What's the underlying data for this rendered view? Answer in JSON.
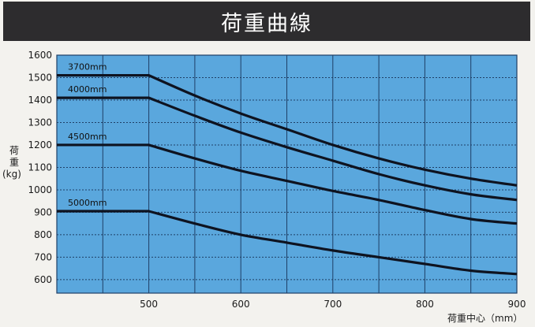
{
  "header": {
    "title": "荷重曲線"
  },
  "colors": {
    "plot_bg": "#5aa7dd",
    "grid": "#1f3f66",
    "line": "#0e1320",
    "title_bg": "#2d2c2e"
  },
  "chart_data": {
    "type": "line",
    "title": "荷重曲線",
    "xlabel": "荷重中心（mm）",
    "ylabel_chars": [
      "荷",
      "重"
    ],
    "ylabel_unit": "(kg)",
    "xlim": [
      400,
      900
    ],
    "ylim": [
      540,
      1600
    ],
    "x_ticks": [
      500,
      600,
      700,
      800,
      900
    ],
    "y_ticks": [
      600,
      700,
      800,
      900,
      1000,
      1100,
      1200,
      1300,
      1400,
      1500,
      1600
    ],
    "grid": true,
    "series": [
      {
        "name": "3700mm",
        "x": [
          400,
          500,
          550,
          600,
          650,
          700,
          750,
          800,
          850,
          900
        ],
        "y": [
          1510,
          1510,
          1420,
          1340,
          1270,
          1200,
          1140,
          1090,
          1050,
          1020
        ]
      },
      {
        "name": "4000mm",
        "x": [
          400,
          500,
          550,
          600,
          650,
          700,
          750,
          800,
          850,
          900
        ],
        "y": [
          1410,
          1410,
          1330,
          1255,
          1190,
          1130,
          1070,
          1020,
          980,
          955
        ]
      },
      {
        "name": "4500mm",
        "x": [
          400,
          500,
          550,
          600,
          650,
          700,
          750,
          800,
          850,
          900
        ],
        "y": [
          1200,
          1200,
          1140,
          1085,
          1040,
          995,
          955,
          910,
          870,
          850
        ]
      },
      {
        "name": "5000mm",
        "x": [
          400,
          500,
          550,
          600,
          650,
          700,
          750,
          800,
          850,
          900
        ],
        "y": [
          905,
          905,
          850,
          800,
          765,
          730,
          700,
          670,
          640,
          625
        ]
      }
    ]
  }
}
